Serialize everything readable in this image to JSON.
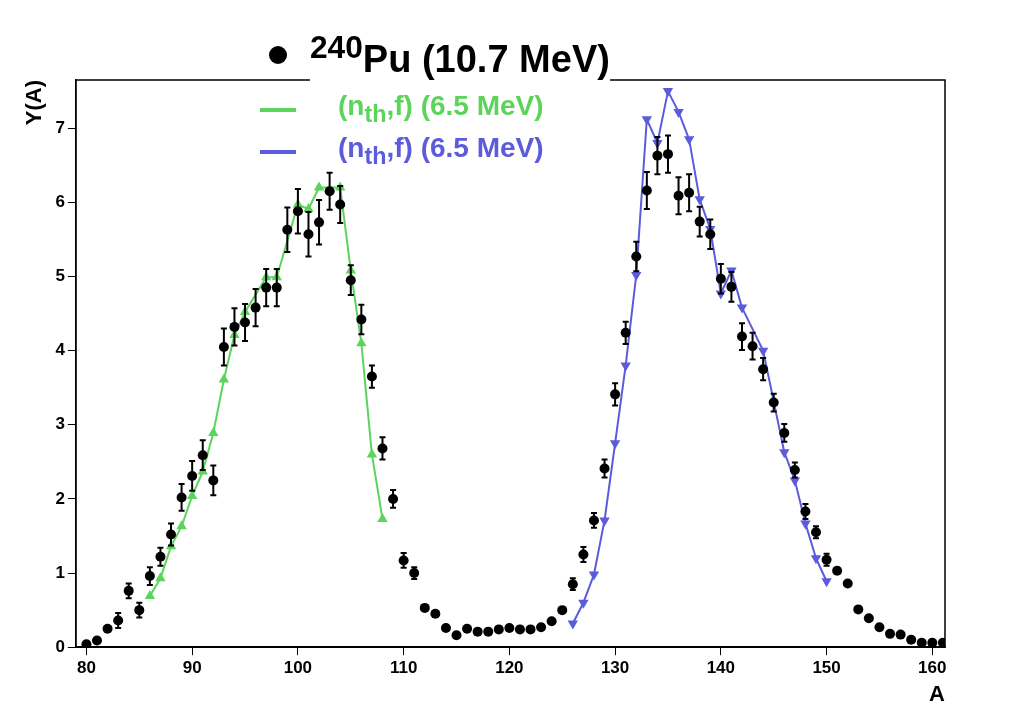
{
  "chart_data": {
    "type": "scatter",
    "xlabel": "A",
    "ylabel": "Y(A)",
    "xlim": [
      79,
      161.2
    ],
    "ylim": [
      0,
      7.65
    ],
    "xticks": [
      80,
      90,
      100,
      110,
      120,
      130,
      140,
      150,
      160
    ],
    "yticks": [
      0,
      1,
      2,
      3,
      4,
      5,
      6,
      7
    ],
    "grid": false,
    "legend": "top",
    "line_style": "solid",
    "series": [
      {
        "name": "$^{240}$Pu (10.7 MeV)",
        "type": "scatter",
        "marker": "circle",
        "color": "#000000",
        "x": [
          80,
          81,
          82,
          83,
          84,
          85,
          86,
          87,
          88,
          89,
          90,
          91,
          92,
          93,
          94,
          95,
          96,
          97,
          98,
          99,
          100,
          101,
          102,
          103,
          104,
          105,
          106,
          107,
          108,
          109,
          110,
          111,
          112,
          113,
          114,
          115,
          116,
          117,
          118,
          119,
          120,
          121,
          122,
          123,
          124,
          125,
          126,
          127,
          128,
          129,
          130,
          131,
          132,
          133,
          134,
          135,
          136,
          137,
          138,
          139,
          140,
          141,
          142,
          143,
          144,
          145,
          146,
          147,
          148,
          149,
          150,
          151,
          152,
          153,
          154,
          155,
          156,
          157,
          158,
          159,
          160,
          161
        ],
        "values": [
          0.04,
          0.09,
          0.25,
          0.36,
          0.76,
          0.5,
          0.96,
          1.22,
          1.52,
          2.02,
          2.31,
          2.59,
          2.25,
          4.05,
          4.32,
          4.38,
          4.58,
          4.85,
          4.85,
          5.63,
          5.88,
          5.57,
          5.73,
          6.15,
          5.97,
          4.95,
          4.42,
          3.65,
          2.68,
          2.0,
          1.17,
          1.0,
          0.53,
          0.45,
          0.26,
          0.16,
          0.25,
          0.21,
          0.21,
          0.24,
          0.26,
          0.24,
          0.24,
          0.27,
          0.35,
          0.5,
          0.85,
          1.25,
          1.71,
          2.41,
          3.41,
          4.24,
          5.27,
          6.16,
          6.63,
          6.65,
          6.09,
          6.13,
          5.74,
          5.57,
          4.97,
          4.86,
          4.19,
          4.06,
          3.75,
          3.3,
          2.89,
          2.39,
          1.83,
          1.55,
          1.18,
          1.03,
          0.86,
          0.51,
          0.39,
          0.27,
          0.18,
          0.17,
          0.1,
          0.06,
          0.06,
          0.06
        ],
        "errors": [
          null,
          null,
          null,
          0.1,
          0.1,
          0.1,
          0.12,
          0.12,
          0.15,
          0.18,
          0.2,
          0.2,
          0.2,
          0.25,
          0.25,
          0.25,
          0.25,
          0.25,
          0.25,
          0.3,
          0.3,
          0.3,
          0.3,
          0.25,
          0.25,
          0.2,
          0.2,
          0.15,
          0.15,
          0.12,
          0.1,
          0.08,
          null,
          null,
          null,
          null,
          null,
          null,
          null,
          null,
          null,
          null,
          null,
          null,
          null,
          null,
          0.08,
          0.1,
          0.1,
          0.12,
          0.15,
          0.15,
          0.2,
          0.25,
          0.25,
          0.25,
          0.25,
          0.25,
          0.2,
          0.2,
          0.2,
          0.2,
          0.18,
          0.18,
          0.15,
          0.12,
          0.12,
          0.1,
          0.1,
          0.08,
          0.08,
          null,
          null,
          null,
          null,
          null,
          null,
          null,
          null,
          null,
          null,
          null
        ]
      },
      {
        "name": "(n$_{th}$,f) (6.5 MeV)",
        "type": "line",
        "marker": "triangle",
        "color": "#5cd45c",
        "x": [
          86,
          87,
          88,
          89,
          90,
          91,
          92,
          93,
          94,
          95,
          96,
          97,
          98,
          99,
          100,
          101,
          102,
          103,
          104,
          105,
          106,
          107,
          108
        ],
        "values": [
          0.69,
          0.93,
          1.36,
          1.63,
          2.04,
          2.37,
          2.89,
          3.61,
          4.21,
          4.52,
          null,
          4.99,
          4.99,
          null,
          5.97,
          5.91,
          6.2,
          null,
          6.2,
          5.08,
          4.1,
          2.6,
          1.73
        ]
      },
      {
        "name": "(n$_{th}$,f) (6.5 MeV)",
        "type": "line",
        "marker": "triangle-down",
        "color": "#5b5bdc",
        "x": [
          126,
          127,
          128,
          129,
          130,
          131,
          132,
          133,
          134,
          135,
          136,
          137,
          138,
          139,
          140,
          141,
          142,
          143,
          144,
          145,
          146,
          147,
          148,
          149,
          150
        ],
        "values": [
          0.32,
          0.6,
          0.98,
          1.71,
          2.75,
          3.8,
          5.02,
          7.12,
          6.8,
          7.5,
          7.22,
          6.85,
          6.04,
          5.64,
          4.77,
          5.08,
          4.58,
          null,
          4.0,
          null,
          2.63,
          2.25,
          1.67,
          1.2,
          0.89
        ]
      }
    ]
  }
}
